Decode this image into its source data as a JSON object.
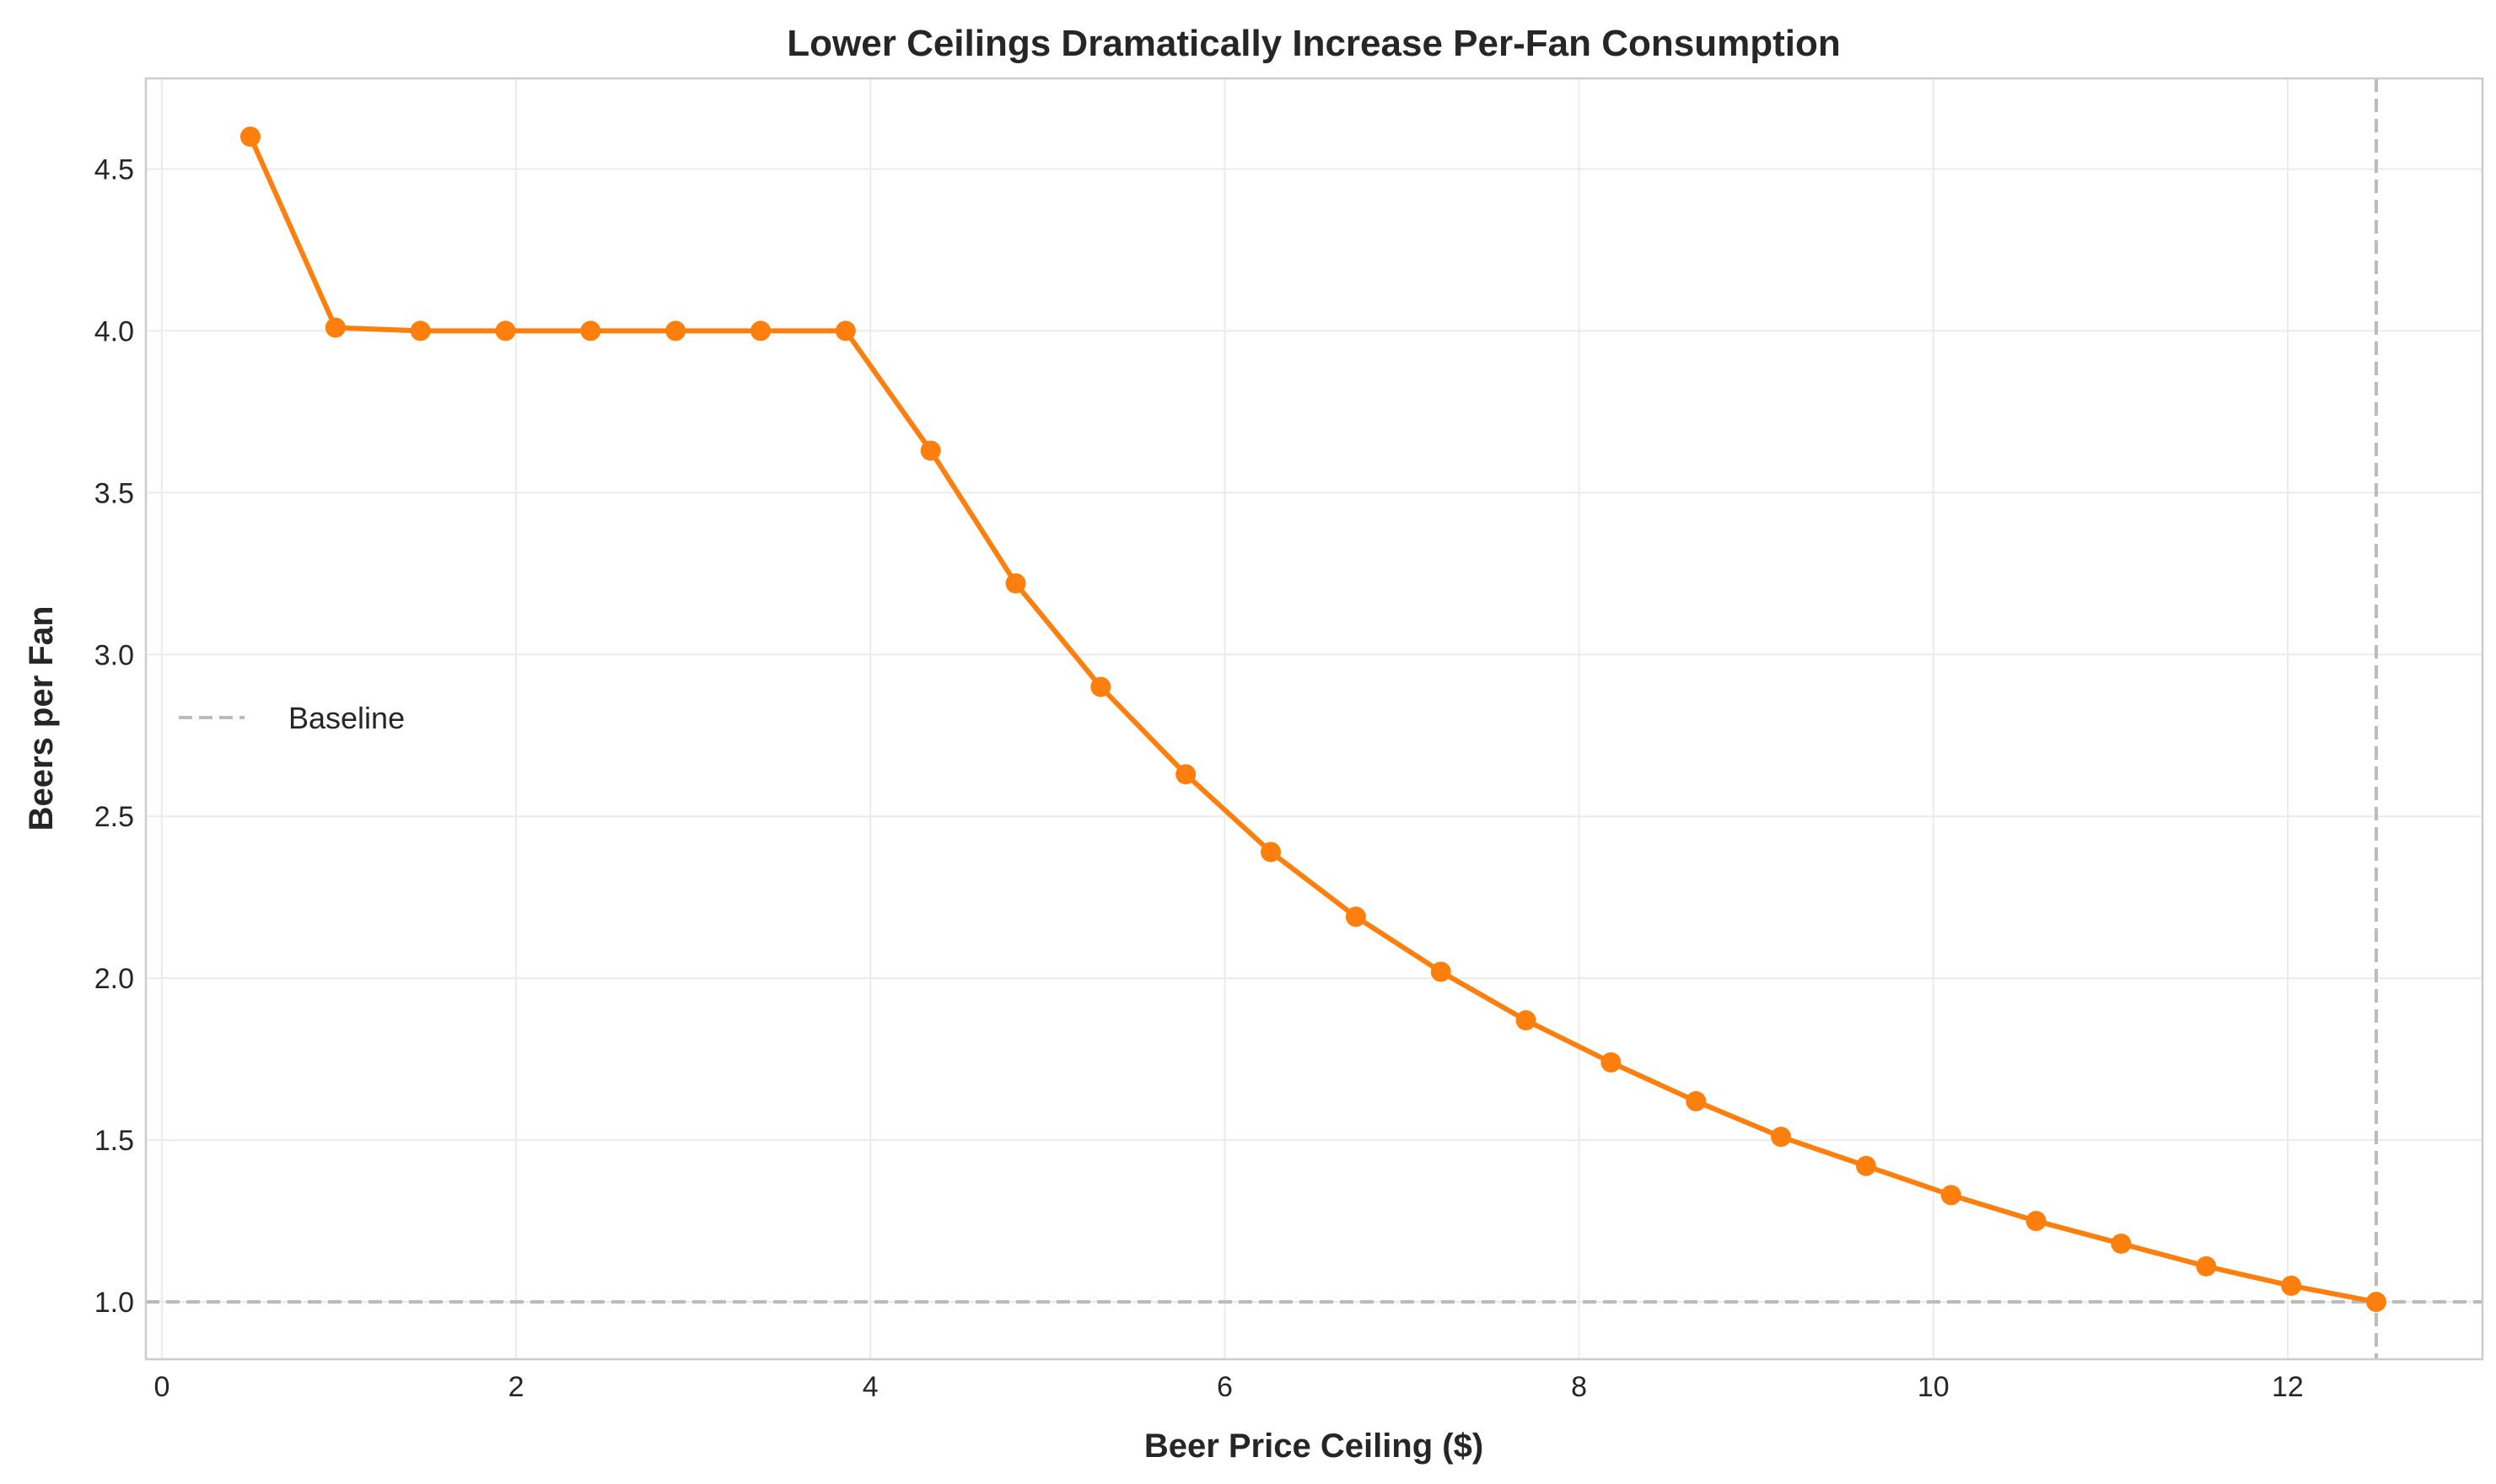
{
  "chart_data": {
    "type": "line",
    "title": "Lower Ceilings Dramatically Increase Per-Fan Consumption",
    "xlabel": "Beer Price Ceiling ($)",
    "ylabel": "Beers per Fan",
    "xlim": [
      -0.09,
      13.1
    ],
    "ylim": [
      0.823,
      4.78
    ],
    "xticks": [
      0,
      2,
      4,
      6,
      8,
      10,
      12
    ],
    "xtick_labels": [
      "0",
      "2",
      "4",
      "6",
      "8",
      "10",
      "12"
    ],
    "yticks": [
      1.0,
      1.5,
      2.0,
      2.5,
      3.0,
      3.5,
      4.0,
      4.5
    ],
    "ytick_labels": [
      "1.0",
      "1.5",
      "2.0",
      "2.5",
      "3.0",
      "3.5",
      "4.0",
      "4.5"
    ],
    "grid": true,
    "legend": {
      "placement": "center-left",
      "entries": [
        "Baseline"
      ]
    },
    "series": [
      {
        "color": "#ff7f0e",
        "marker": "circle",
        "x": [
          0.5,
          0.98,
          1.46,
          1.94,
          2.42,
          2.9,
          3.38,
          3.86,
          4.34,
          4.82,
          5.3,
          5.78,
          6.26,
          6.74,
          7.22,
          7.7,
          8.18,
          8.66,
          9.14,
          9.62,
          10.1,
          10.58,
          11.06,
          11.54,
          12.02,
          12.5
        ],
        "y": [
          4.6,
          4.01,
          4.0,
          4.0,
          4.0,
          4.0,
          4.0,
          4.0,
          3.63,
          3.22,
          2.9,
          2.63,
          2.39,
          2.19,
          2.02,
          1.87,
          1.74,
          1.62,
          1.51,
          1.42,
          1.33,
          1.25,
          1.18,
          1.11,
          1.05,
          1.0
        ]
      }
    ],
    "reference_lines": [
      {
        "name": "Baseline",
        "orientation": "horizontal",
        "value": 1.0,
        "style": "dashed",
        "color": "#bbbbbb"
      },
      {
        "orientation": "vertical",
        "value": 12.5,
        "style": "dashed",
        "color": "#bbbbbb"
      }
    ]
  }
}
